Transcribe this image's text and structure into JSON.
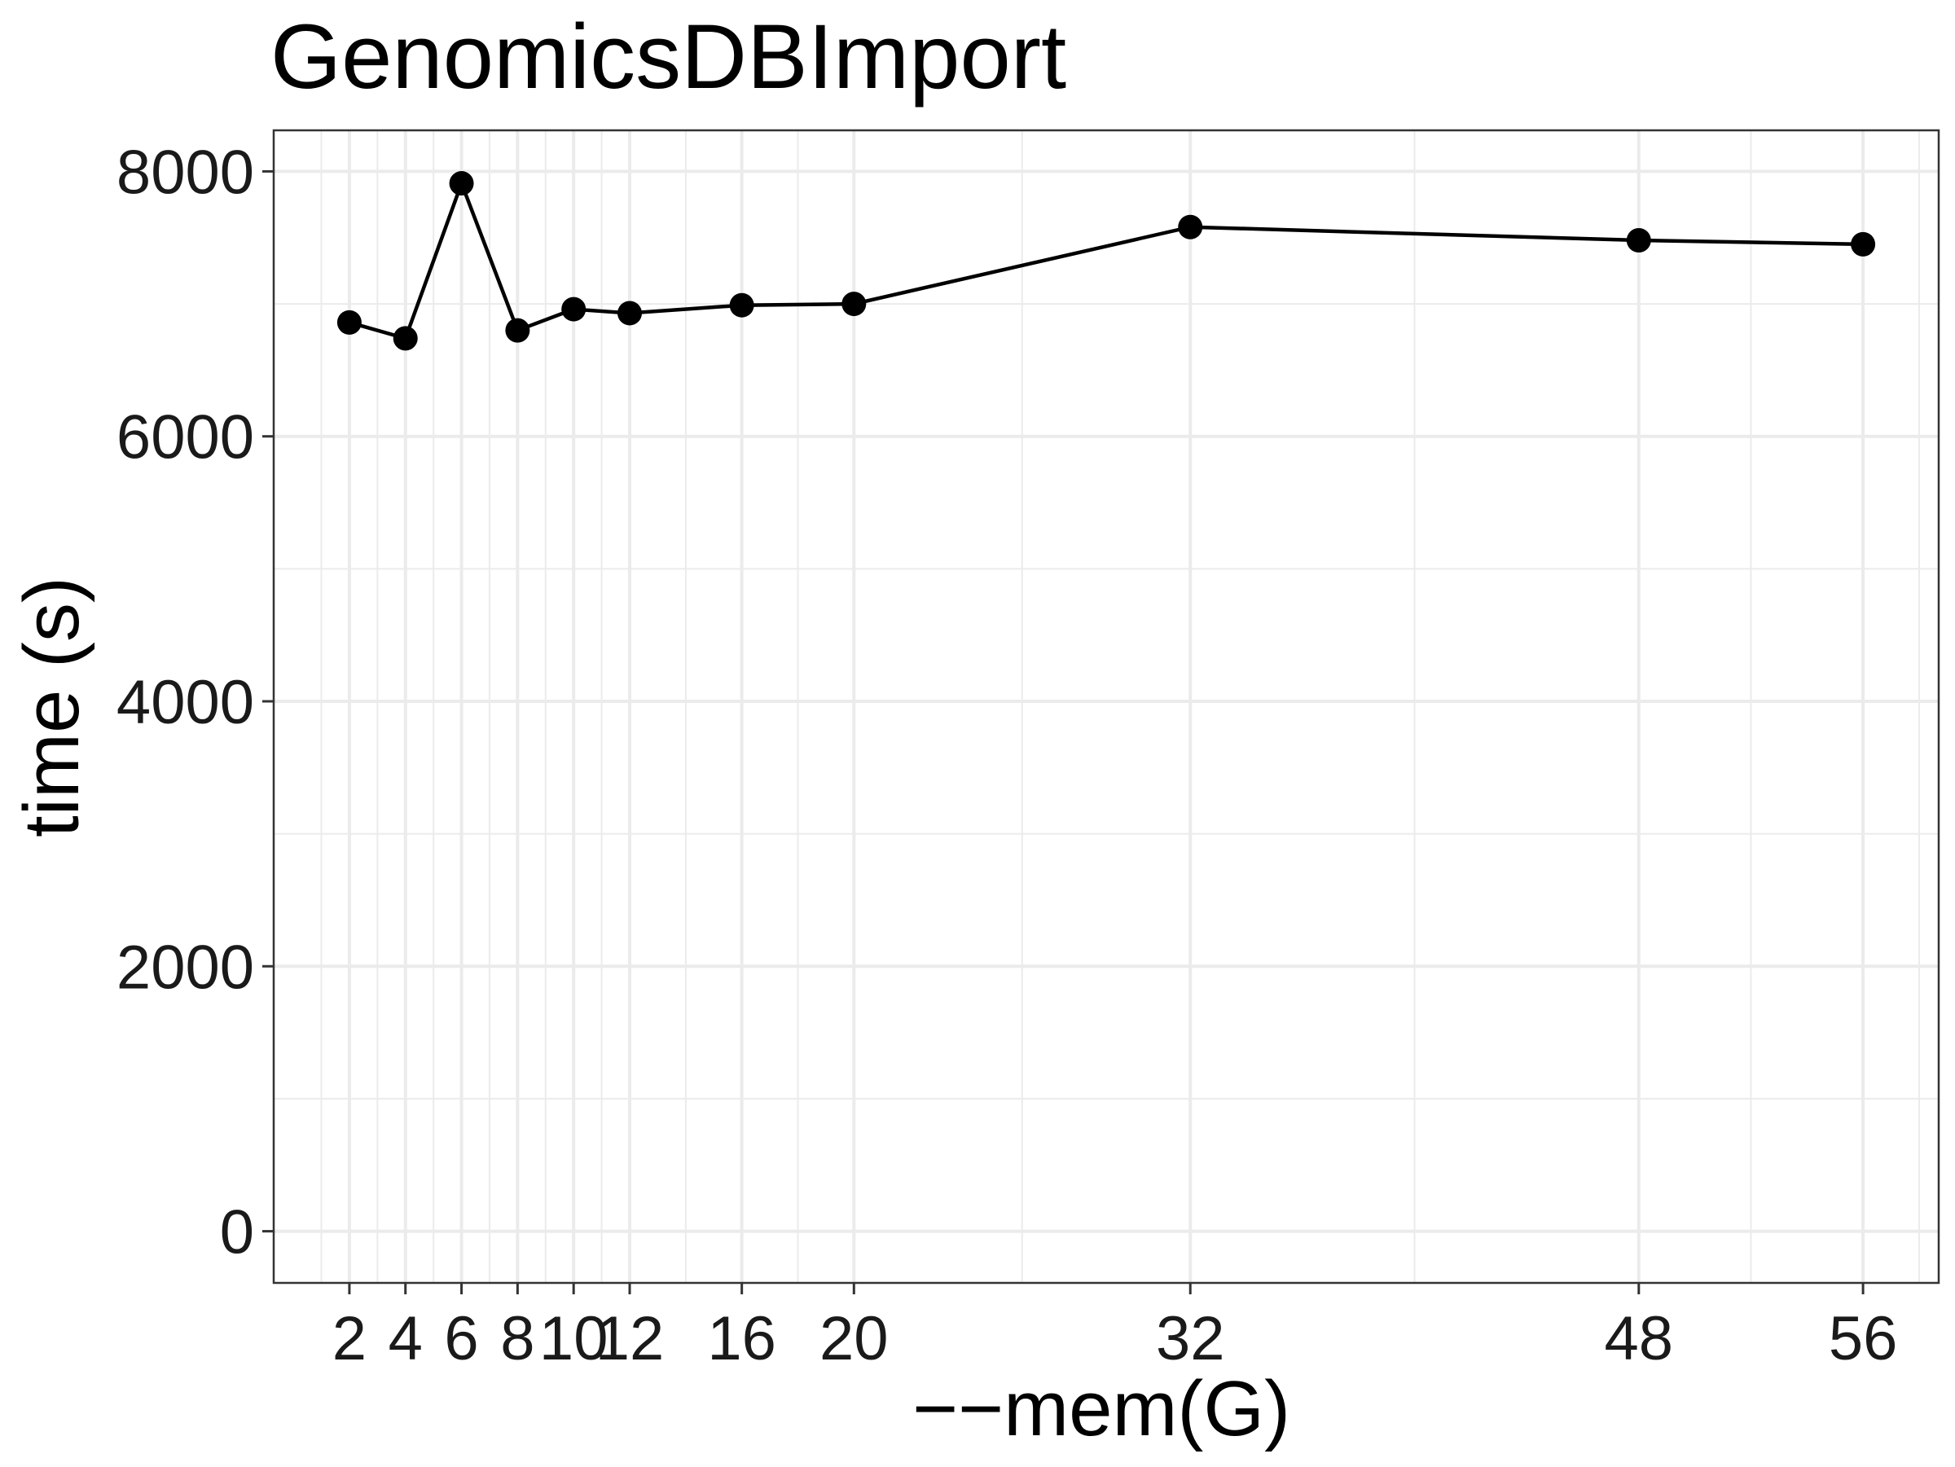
{
  "chart_data": {
    "type": "line",
    "title": "GenomicsDBImport",
    "xlabel": "−−mem(G)",
    "ylabel": "time (s)",
    "x": [
      2,
      4,
      6,
      8,
      10,
      12,
      16,
      20,
      32,
      48,
      56
    ],
    "x_tick_labels": [
      "2",
      "4",
      "6",
      "8",
      "10",
      "12",
      "16",
      "20",
      "32",
      "48",
      "56"
    ],
    "series": [
      {
        "values": [
          6860,
          6740,
          7910,
          6800,
          6960,
          6930,
          6990,
          7000,
          7580,
          7480,
          7450
        ]
      }
    ],
    "y_ticks": [
      0,
      2000,
      4000,
      6000,
      8000
    ],
    "y_tick_labels": [
      "0",
      "2000",
      "4000",
      "6000",
      "8000"
    ],
    "xlim": [
      -0.7,
      58.7
    ],
    "ylim": [
      -390,
      8310
    ],
    "grid": true,
    "legend": "none",
    "colors": {
      "line": "#000000",
      "point": "#000000",
      "grid": "#ebebeb",
      "border": "#333333"
    }
  }
}
